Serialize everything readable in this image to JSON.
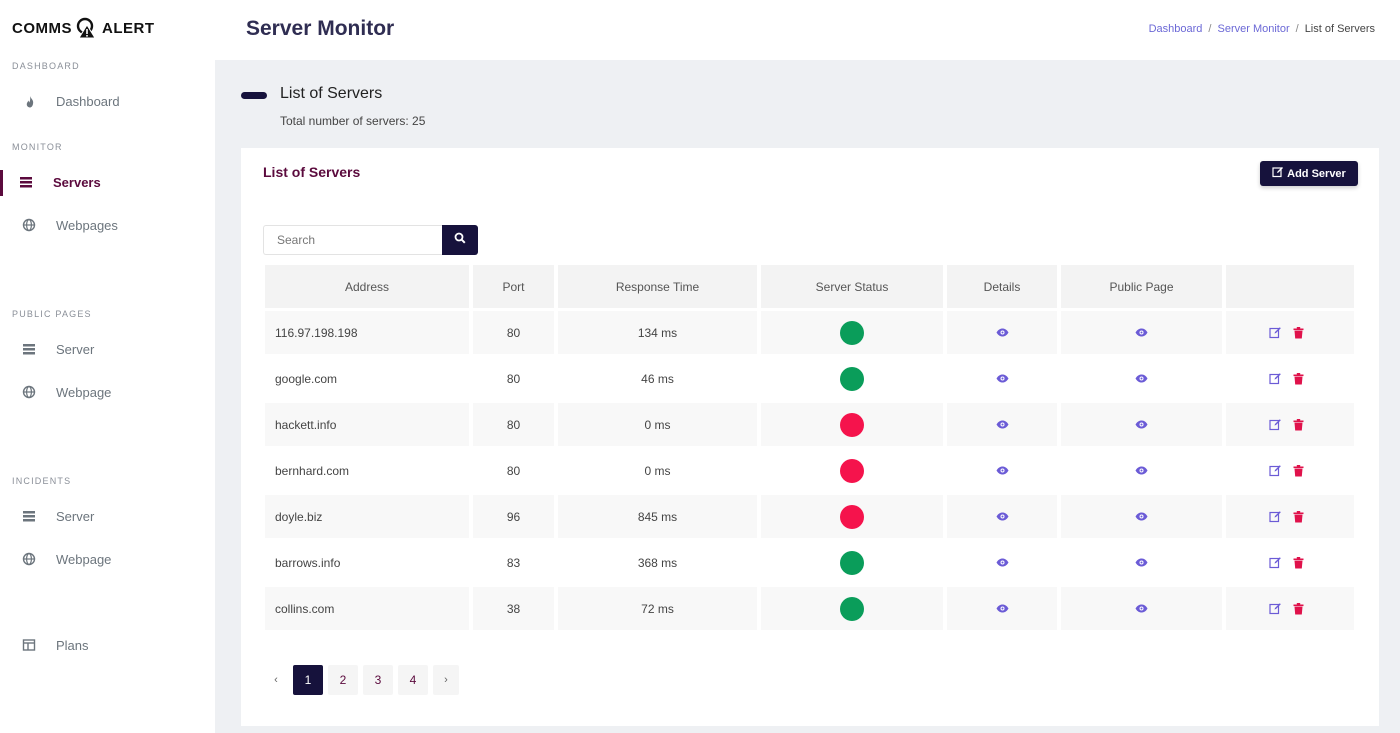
{
  "brand": {
    "left": "COMMS",
    "right": "ALERT"
  },
  "sidebar": {
    "sections": [
      {
        "title": "DASHBOARD"
      },
      {
        "title": "MONITOR"
      },
      {
        "title": "PUBLIC PAGES"
      },
      {
        "title": "INCIDENTS"
      }
    ],
    "items": [
      {
        "label": "Dashboard",
        "icon": "fire-icon"
      },
      {
        "label": "Servers",
        "icon": "server-icon",
        "active": true
      },
      {
        "label": "Webpages",
        "icon": "globe-icon"
      },
      {
        "label": "Server",
        "icon": "server-icon"
      },
      {
        "label": "Webpage",
        "icon": "globe-icon"
      },
      {
        "label": "Server",
        "icon": "server-icon"
      },
      {
        "label": "Webpage",
        "icon": "globe-icon"
      },
      {
        "label": "Plans",
        "icon": "columns-icon"
      }
    ]
  },
  "header": {
    "title": "Server Monitor",
    "breadcrumb": [
      "Dashboard",
      "Server Monitor",
      "List of Servers"
    ],
    "breadcrumb_sep": "/"
  },
  "page": {
    "heading": "List of Servers",
    "subheading": "Total number of servers: 25"
  },
  "card": {
    "title": "List of Servers",
    "add_button": "Add Server",
    "search_placeholder": "Search"
  },
  "table": {
    "columns": [
      "Address",
      "Port",
      "Response Time",
      "Server Status",
      "Details",
      "Public Page",
      ""
    ],
    "rows": [
      {
        "address": "116.97.198.198",
        "port": "80",
        "response": "134 ms",
        "status": "up"
      },
      {
        "address": "google.com",
        "port": "80",
        "response": "46 ms",
        "status": "up"
      },
      {
        "address": "hackett.info",
        "port": "80",
        "response": "0 ms",
        "status": "down"
      },
      {
        "address": "bernhard.com",
        "port": "80",
        "response": "0 ms",
        "status": "down"
      },
      {
        "address": "doyle.biz",
        "port": "96",
        "response": "845 ms",
        "status": "down"
      },
      {
        "address": "barrows.info",
        "port": "83",
        "response": "368 ms",
        "status": "up"
      },
      {
        "address": "collins.com",
        "port": "38",
        "response": "72 ms",
        "status": "up"
      }
    ]
  },
  "pagination": {
    "prev": "‹",
    "next": "›",
    "pages": [
      "1",
      "2",
      "3",
      "4"
    ],
    "current": "1"
  },
  "colors": {
    "accent_dark": "#16123c",
    "accent_maroon": "#5b0a3d",
    "status_up": "#0a9d5a",
    "status_down": "#f5134c",
    "icon_purple": "#6b5bd6"
  }
}
